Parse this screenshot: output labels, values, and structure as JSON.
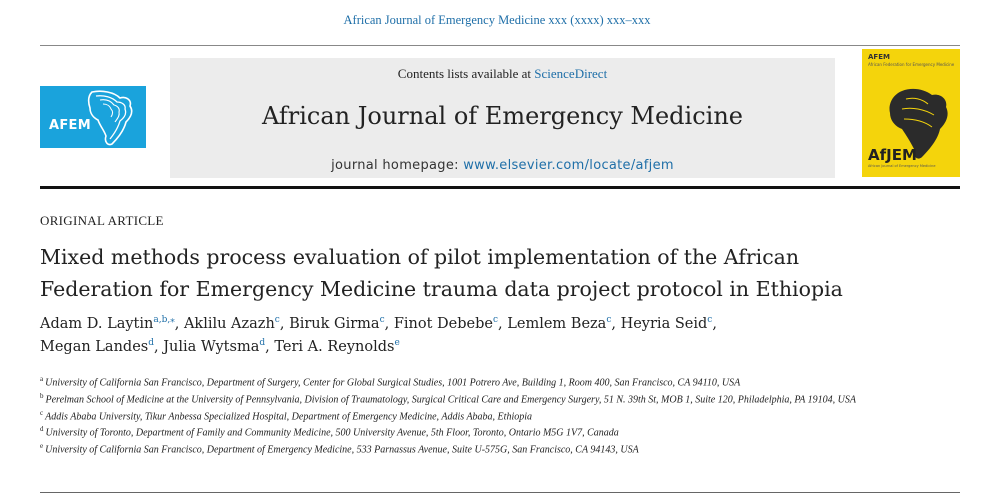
{
  "running_header": "African Journal of Emergency Medicine xxx (xxxx) xxx–xxx",
  "masthead": {
    "contents_prefix": "Contents lists available at ",
    "contents_link": "ScienceDirect",
    "journal_title": "African Journal of Emergency Medicine",
    "homepage_prefix": "journal homepage: ",
    "homepage_url": "www.elsevier.com/locate/afjem"
  },
  "logo_left": {
    "text": "AFEM",
    "color": "#1aa3dc"
  },
  "cover": {
    "small_label": "AFEM",
    "subtitle": "African Federation for Emergency Medicine",
    "abbr": "AfJEM",
    "tagline": "African Journal of Emergency Medicine",
    "color": "#f4d40c"
  },
  "article": {
    "type": "ORIGINAL ARTICLE",
    "title_line1": "Mixed methods process evaluation of pilot implementation of the African",
    "title_line2": "Federation for Emergency Medicine trauma data project protocol in Ethiopia"
  },
  "authors": [
    {
      "name": "Adam D. Laytin",
      "sup": "a,b,⁎",
      "sep": ", "
    },
    {
      "name": "Aklilu Azazh",
      "sup": "c",
      "sep": ", "
    },
    {
      "name": "Biruk Girma",
      "sup": "c",
      "sep": ", "
    },
    {
      "name": "Finot Debebe",
      "sup": "c",
      "sep": ", "
    },
    {
      "name": "Lemlem Beza",
      "sup": "c",
      "sep": ", "
    },
    {
      "name": "Heyria Seid",
      "sup": "c",
      "sep": ","
    },
    {
      "name": "Megan Landes",
      "sup": "d",
      "sep": ", "
    },
    {
      "name": "Julia Wytsma",
      "sup": "d",
      "sep": ", "
    },
    {
      "name": "Teri A. Reynolds",
      "sup": "e",
      "sep": ""
    }
  ],
  "affiliations": [
    {
      "label": "a",
      "text": "University of California San Francisco, Department of Surgery, Center for Global Surgical Studies, 1001 Potrero Ave, Building 1, Room 400, San Francisco, CA 94110, USA"
    },
    {
      "label": "b",
      "text": "Perelman School of Medicine at the University of Pennsylvania, Division of Traumatology, Surgical Critical Care and Emergency Surgery, 51 N. 39th St, MOB 1, Suite 120, Philadelphia, PA 19104, USA"
    },
    {
      "label": "c",
      "text": "Addis Ababa University, Tikur Anbessa Specialized Hospital, Department of Emergency Medicine, Addis Ababa, Ethiopia"
    },
    {
      "label": "d",
      "text": "University of Toronto, Department of Family and Community Medicine, 500 University Avenue, 5th Floor, Toronto, Ontario M5G 1V7, Canada"
    },
    {
      "label": "e",
      "text": "University of California San Francisco, Department of Emergency Medicine, 533 Parnassus Avenue, Suite U-575G, San Francisco, CA 94143, USA"
    }
  ]
}
